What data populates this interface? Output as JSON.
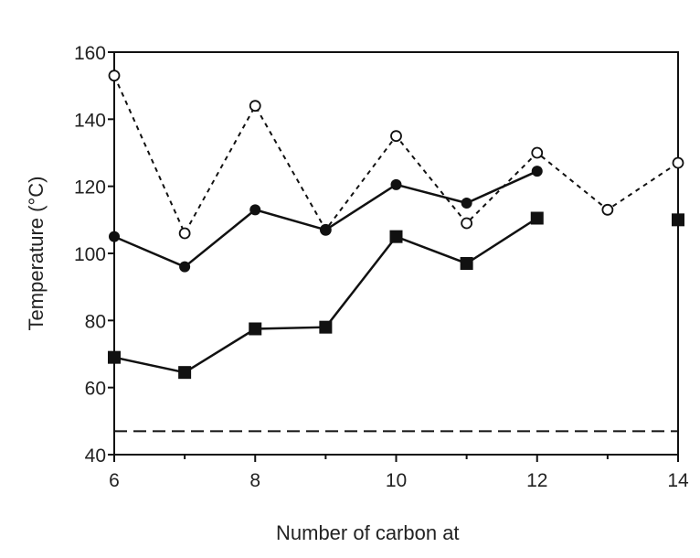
{
  "chart_data": {
    "type": "line",
    "xlabel": "Number of carbon at",
    "ylabel": "Temperature (°C)",
    "xlim": [
      6,
      14
    ],
    "ylim": [
      40,
      160
    ],
    "xticks": [
      6,
      8,
      10,
      12,
      14
    ],
    "yticks": [
      40,
      60,
      80,
      100,
      120,
      140,
      160
    ],
    "grid": false,
    "series": [
      {
        "style": "dotted-open-circle",
        "points": [
          [
            6,
            153
          ],
          [
            7,
            106
          ],
          [
            8,
            144
          ],
          [
            9,
            107
          ],
          [
            10,
            135
          ],
          [
            11,
            109
          ],
          [
            12,
            130
          ],
          [
            13,
            113
          ],
          [
            14,
            127
          ]
        ]
      },
      {
        "style": "solid-filled-circle",
        "points": [
          [
            6,
            105
          ],
          [
            7,
            96
          ],
          [
            8,
            113
          ],
          [
            9,
            107
          ],
          [
            10,
            120.5
          ],
          [
            11,
            115
          ],
          [
            12,
            124.5
          ]
        ]
      },
      {
        "style": "solid-filled-square",
        "points": [
          [
            6,
            69
          ],
          [
            7,
            64.5
          ],
          [
            8,
            77.5
          ],
          [
            9,
            78
          ],
          [
            10,
            105
          ],
          [
            11,
            97
          ],
          [
            12,
            110.5
          ],
          [
            14,
            110
          ]
        ],
        "connected_through": 12
      }
    ],
    "reference_lines": [
      {
        "style": "dashed",
        "y": 47
      }
    ],
    "colors": {
      "ink": "#111111",
      "open_marker_fill": "#ffffff"
    }
  }
}
